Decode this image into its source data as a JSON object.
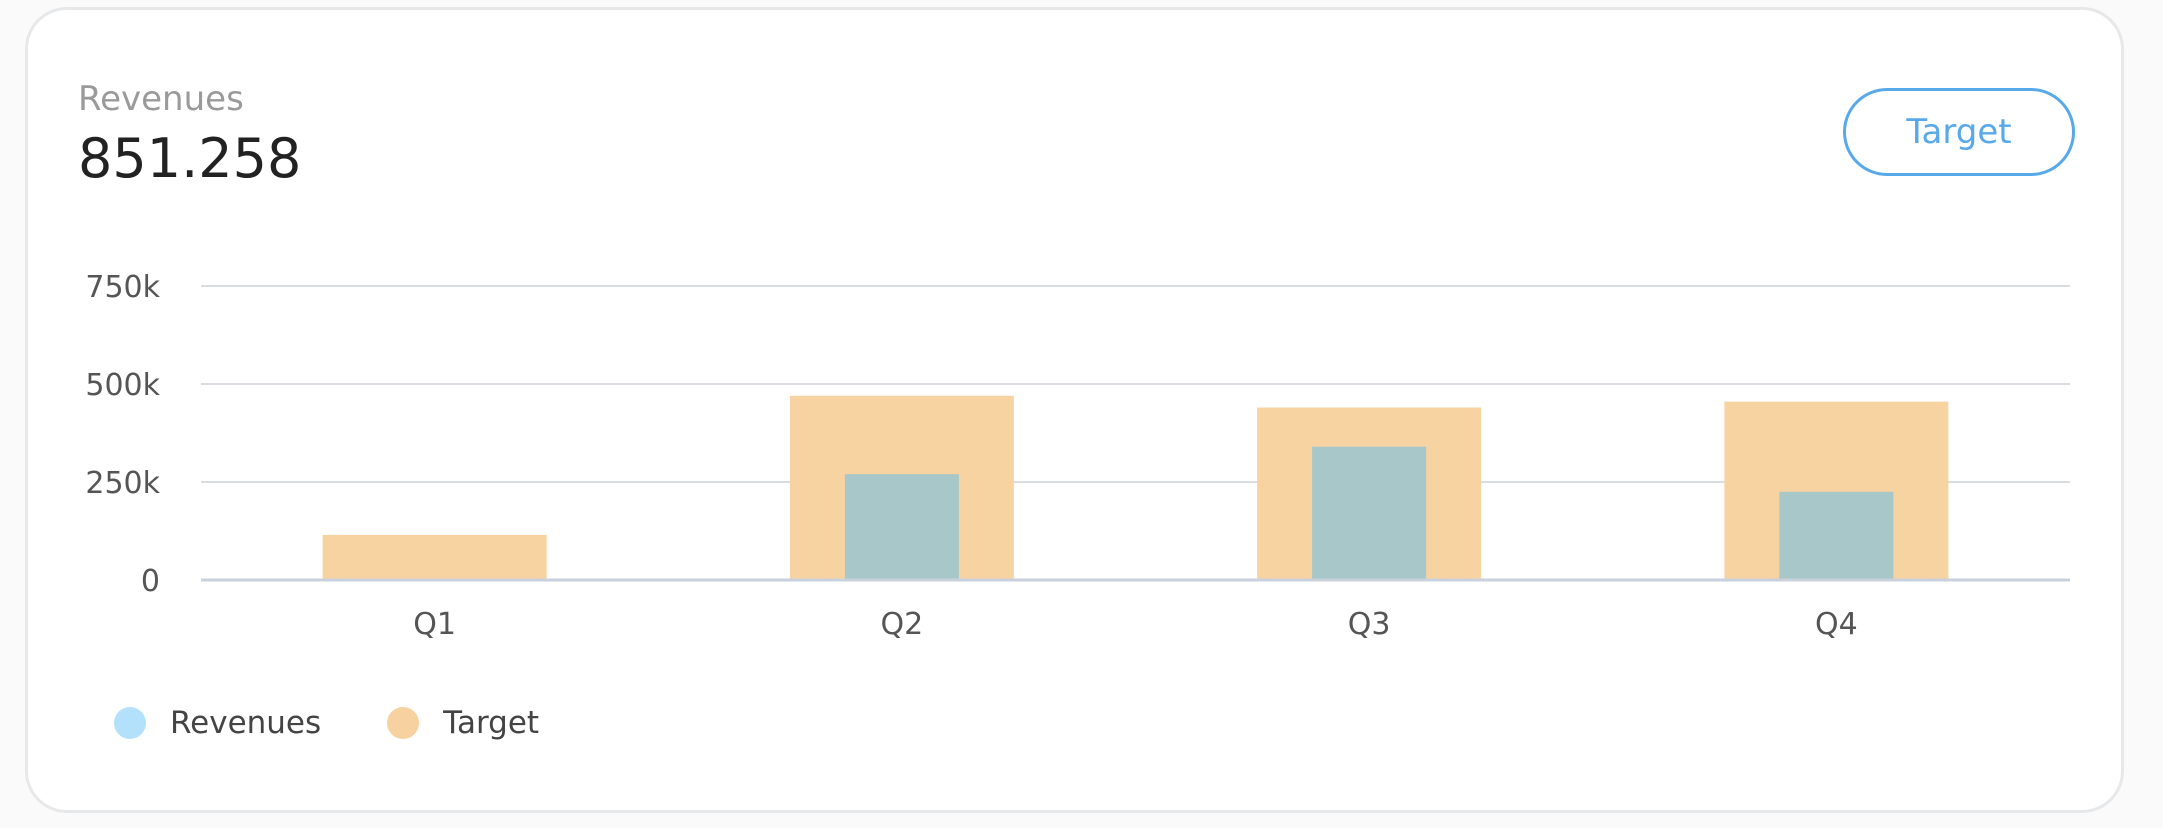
{
  "kpi": {
    "label": "Revenues",
    "value": "851.258"
  },
  "button": {
    "label": "Target"
  },
  "colors": {
    "revenues": "#a7c7c9",
    "target": "#f7d3a2",
    "revenues_legend": "#b3e1fb",
    "target_legend": "#f8d1a1",
    "grid": "#d9dde1",
    "axis": "#c8d2dc",
    "button": "#58a9ea"
  },
  "chart_data": {
    "type": "bar",
    "categories": [
      "Q1",
      "Q2",
      "Q3",
      "Q4"
    ],
    "series": [
      {
        "name": "Revenues",
        "values": [
          0,
          270000,
          340000,
          225000
        ]
      },
      {
        "name": "Target",
        "values": [
          115000,
          470000,
          440000,
          455000
        ]
      }
    ],
    "ylim": [
      0,
      750000
    ],
    "yticks": [
      0,
      250000,
      500000,
      750000
    ],
    "ytick_labels": [
      "0",
      "250k",
      "500k",
      "750k"
    ],
    "grid": true,
    "legend_position": "bottom-left",
    "legend": [
      "Revenues",
      "Target"
    ]
  }
}
